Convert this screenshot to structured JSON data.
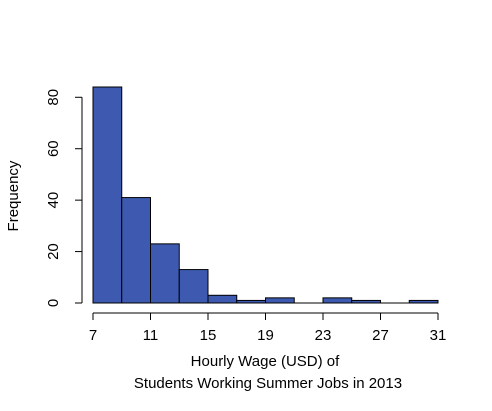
{
  "chart_data": {
    "type": "histogram",
    "title": "",
    "xlabel_lines": [
      "Hourly Wage (USD) of",
      "Students Working Summer Jobs in 2013"
    ],
    "ylabel": "Frequency",
    "bin_edges": [
      7,
      9,
      11,
      13,
      15,
      17,
      19,
      21,
      23,
      25,
      27,
      29,
      31
    ],
    "counts": [
      84,
      41,
      23,
      13,
      3,
      1,
      2,
      0,
      2,
      1,
      0,
      1
    ],
    "x_ticks": [
      7,
      11,
      15,
      19,
      23,
      27,
      31
    ],
    "y_ticks": [
      0,
      20,
      40,
      60,
      80
    ],
    "xlim": [
      7,
      31
    ],
    "ylim": [
      0,
      84
    ],
    "grid": false,
    "legend": "none",
    "bar_color": "#3d5ab0",
    "bar_edge_color": "#000000"
  }
}
